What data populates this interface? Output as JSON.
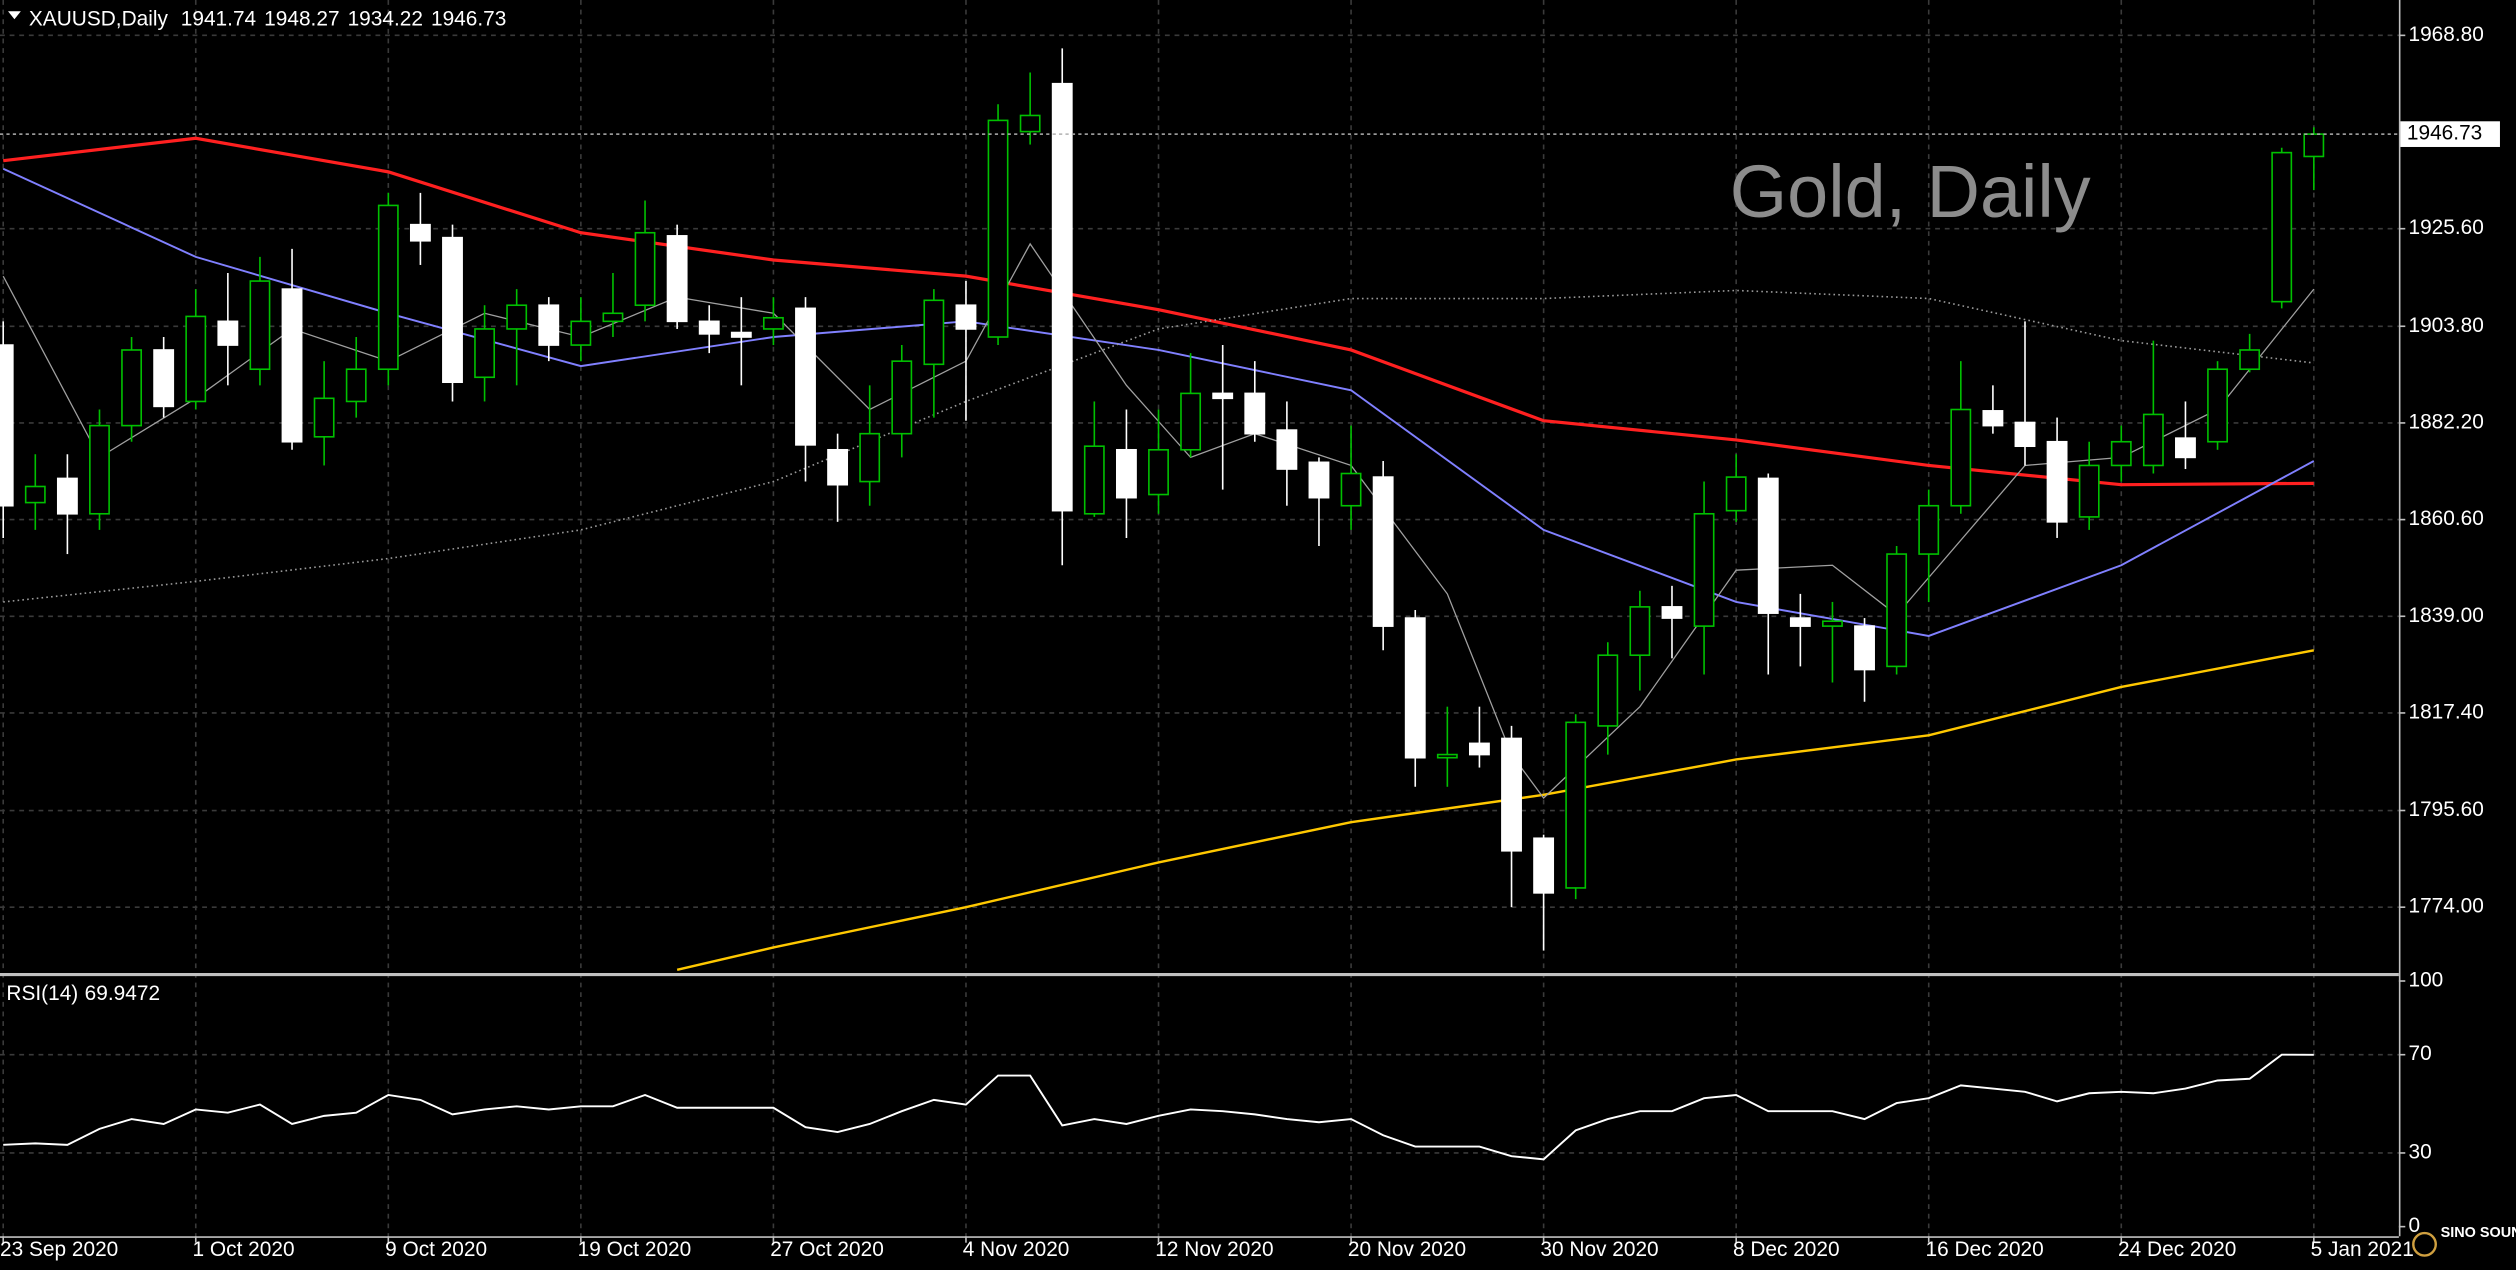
{
  "chart_data": [
    {
      "type": "candlestick",
      "title": "XAUUSD,Daily",
      "watermark": "Gold, Daily",
      "categories": [
        "23 Sep 2020",
        null,
        null,
        null,
        null,
        null,
        "1 Oct 2020",
        null,
        null,
        null,
        null,
        null,
        "9 Oct 2020",
        null,
        null,
        null,
        null,
        null,
        "19 Oct 2020",
        null,
        null,
        null,
        null,
        null,
        "27 Oct 2020",
        null,
        null,
        null,
        null,
        null,
        "4 Nov 2020",
        null,
        null,
        null,
        null,
        null,
        "12 Nov 2020",
        null,
        null,
        null,
        null,
        null,
        "20 Nov 2020",
        null,
        null,
        null,
        null,
        null,
        "30 Nov 2020",
        null,
        null,
        null,
        null,
        null,
        "8 Dec 2020",
        null,
        null,
        null,
        null,
        null,
        "16 Dec 2020",
        null,
        null,
        null,
        null,
        null,
        "24 Dec 2020",
        null,
        null,
        null,
        null,
        null,
        "5 Jan 2021"
      ],
      "open": [
        1899.6,
        1864.4,
        1869.8,
        1861.9,
        1881.6,
        1898.5,
        1887.0,
        1904.9,
        1894.2,
        1912.1,
        1879.1,
        1887.0,
        1894.2,
        1926.5,
        1923.6,
        1892.4,
        1903.2,
        1908.5,
        1899.6,
        1904.9,
        1908.5,
        1924.0,
        1904.9,
        1902.4,
        1903.2,
        1907.8,
        1876.2,
        1869.1,
        1879.8,
        1895.3,
        1908.5,
        1901.4,
        1947.3,
        1958.0,
        1861.9,
        1876.2,
        1866.2,
        1876.2,
        1888.8,
        1888.8,
        1880.6,
        1873.4,
        1863.7,
        1870.1,
        1838.6,
        1807.4,
        1810.6,
        1811.7,
        1789.4,
        1778.3,
        1814.5,
        1830.3,
        1841.1,
        1836.8,
        1862.6,
        1869.8,
        1838.6,
        1836.8,
        1836.8,
        1827.8,
        1852.9,
        1863.7,
        1884.9,
        1882.3,
        1878.0,
        1861.2,
        1872.7,
        1872.7,
        1878.8,
        1878.0,
        1894.2,
        1909.3,
        1941.74
      ],
      "high": [
        1904.9,
        1875.2,
        1875.2,
        1885.2,
        1901.4,
        1901.4,
        1912.1,
        1915.7,
        1919.3,
        1921.1,
        1896.0,
        1901.4,
        1933.6,
        1933.6,
        1926.5,
        1908.5,
        1912.1,
        1910.3,
        1910.3,
        1915.7,
        1931.9,
        1926.5,
        1908.5,
        1910.3,
        1910.3,
        1910.3,
        1879.8,
        1890.6,
        1899.6,
        1912.1,
        1913.9,
        1953.4,
        1960.5,
        1965.9,
        1887.0,
        1885.2,
        1885.2,
        1897.8,
        1899.6,
        1896.0,
        1887.0,
        1874.5,
        1881.6,
        1873.7,
        1840.4,
        1818.8,
        1818.8,
        1814.5,
        1790.2,
        1817.1,
        1833.2,
        1844.7,
        1845.8,
        1869.1,
        1875.2,
        1870.9,
        1844.0,
        1842.2,
        1838.6,
        1854.7,
        1867.3,
        1896.0,
        1890.6,
        1904.9,
        1883.4,
        1878.0,
        1881.6,
        1900.6,
        1887.0,
        1896.0,
        1902.1,
        1943.7,
        1948.27
      ],
      "low": [
        1856.5,
        1858.3,
        1852.9,
        1858.3,
        1878.0,
        1883.4,
        1885.2,
        1890.6,
        1890.6,
        1876.2,
        1872.7,
        1883.4,
        1890.6,
        1917.5,
        1887.0,
        1887.0,
        1890.6,
        1896.0,
        1896.0,
        1901.4,
        1904.9,
        1903.2,
        1897.8,
        1890.6,
        1899.6,
        1869.1,
        1860.1,
        1863.7,
        1874.5,
        1883.4,
        1882.7,
        1899.6,
        1944.4,
        1850.4,
        1861.2,
        1856.5,
        1861.9,
        1874.5,
        1867.3,
        1878.0,
        1863.7,
        1854.7,
        1858.3,
        1831.4,
        1800.9,
        1800.9,
        1805.2,
        1774.0,
        1764.3,
        1775.8,
        1808.1,
        1822.4,
        1829.6,
        1826.0,
        1860.1,
        1826.0,
        1827.8,
        1824.2,
        1819.9,
        1826.0,
        1842.2,
        1861.9,
        1879.8,
        1872.7,
        1856.5,
        1858.3,
        1869.1,
        1870.9,
        1871.9,
        1876.2,
        1893.5,
        1907.8,
        1934.22
      ],
      "close": [
        1863.7,
        1868.0,
        1861.9,
        1881.6,
        1898.5,
        1885.9,
        1906.0,
        1899.6,
        1913.9,
        1878.0,
        1887.7,
        1894.2,
        1930.8,
        1922.9,
        1891.3,
        1903.2,
        1908.5,
        1899.6,
        1904.9,
        1906.7,
        1924.7,
        1904.9,
        1902.1,
        1901.4,
        1905.7,
        1877.3,
        1868.4,
        1879.8,
        1896.0,
        1909.6,
        1903.2,
        1949.8,
        1950.9,
        1862.6,
        1877.0,
        1865.5,
        1876.2,
        1888.8,
        1887.7,
        1879.8,
        1871.9,
        1865.5,
        1870.9,
        1836.8,
        1807.4,
        1808.1,
        1808.1,
        1786.6,
        1777.2,
        1815.3,
        1830.3,
        1841.1,
        1838.6,
        1861.9,
        1870.1,
        1839.7,
        1836.8,
        1837.9,
        1827.1,
        1852.9,
        1863.7,
        1885.2,
        1881.6,
        1877.0,
        1860.1,
        1872.7,
        1878.0,
        1884.1,
        1874.5,
        1894.2,
        1898.5,
        1942.6,
        1946.73
      ],
      "up_color": "#00c000",
      "down_color": "#ffffff",
      "grid": true,
      "ylim": [
        1759.3,
        1976.7
      ],
      "yticks": [
        {
          "value": 1968.8,
          "label": "1968.80"
        },
        {
          "value": 1925.6,
          "label": "1925.60"
        },
        {
          "value": 1903.8,
          "label": "1903.80"
        },
        {
          "value": 1882.2,
          "label": "1882.20"
        },
        {
          "value": 1860.6,
          "label": "1860.60"
        },
        1839,
        {
          "value": 1839,
          "label": "1839.00"
        },
        {
          "value": 1817.4,
          "label": "1817.40"
        },
        {
          "value": 1795.6,
          "label": "1795.60"
        },
        {
          "value": 1774,
          "label": "1774.00"
        }
      ],
      "overlays": [
        {
          "color": "#ff2020",
          "x": [
            0,
            6,
            12,
            18,
            24,
            30,
            36,
            42,
            48,
            54,
            60,
            66,
            72
          ],
          "values": [
            1940.8,
            1945.8,
            1938.3,
            1924.7,
            1918.6,
            1915.0,
            1907.5,
            1898.5,
            1882.7,
            1878.4,
            1872.7,
            1868.4,
            1868.7
          ]
        },
        {
          "color": "#8080ff",
          "x": [
            0,
            6,
            12,
            18,
            24,
            30,
            36,
            42,
            48,
            54,
            60,
            66,
            72
          ],
          "values": [
            1939.0,
            1919.3,
            1906.7,
            1894.9,
            1901.4,
            1904.9,
            1898.5,
            1889.5,
            1858.3,
            1842.2,
            1834.6,
            1850.4,
            1873.7
          ]
        },
        {
          "color": "#9a9a9a",
          "style": "dotted",
          "x": [
            0,
            6,
            12,
            18,
            24,
            30,
            36,
            42,
            48,
            54,
            60,
            66,
            72
          ],
          "values": [
            1842.2,
            1846.8,
            1851.9,
            1858.3,
            1869.1,
            1887.0,
            1903.2,
            1910.0,
            1910.0,
            1911.8,
            1910.0,
            1900.6,
            1895.6
          ]
        },
        {
          "color": "#ffc800",
          "x": [
            21,
            24,
            30,
            36,
            42,
            48,
            54,
            60,
            66,
            72
          ],
          "values": [
            1760.0,
            1765.0,
            1774.0,
            1784.0,
            1793.0,
            1799.1,
            1807.0,
            1812.4,
            1823.2,
            1831.4
          ]
        },
        {
          "color": "#a0a0a0",
          "x": [
            0,
            3,
            6,
            9,
            12,
            15,
            18,
            21,
            24,
            27,
            30,
            32,
            35,
            37,
            39,
            42,
            45,
            47,
            48,
            51,
            54,
            57,
            59,
            63,
            66,
            69,
            72
          ],
          "values": [
            1915.0,
            1874.5,
            1887.7,
            1903.2,
            1896.0,
            1906.7,
            1901.4,
            1910.3,
            1906.7,
            1885.2,
            1896.0,
            1922.2,
            1890.6,
            1874.5,
            1879.8,
            1872.7,
            1844.0,
            1808.1,
            1798.4,
            1818.8,
            1849.3,
            1850.4,
            1839.3,
            1872.7,
            1874.5,
            1885.2,
            1912.1
          ]
        }
      ]
    },
    {
      "type": "line",
      "title": "RSI(14)",
      "ylim": [
        0,
        100
      ],
      "yticks": [
        100,
        70,
        30,
        0
      ],
      "series": [
        {
          "color": "#ffffff",
          "values": [
            33.3,
            33.9,
            33.3,
            39.8,
            43.8,
            41.8,
            47.7,
            46.4,
            49.7,
            41.8,
            45.1,
            46.4,
            53.6,
            51.6,
            45.7,
            47.7,
            49.0,
            47.7,
            49.0,
            49.0,
            53.6,
            48.4,
            48.4,
            48.4,
            48.4,
            40.5,
            38.5,
            41.8,
            47.0,
            51.6,
            49.7,
            61.5,
            61.5,
            41.2,
            43.8,
            41.8,
            45.1,
            47.7,
            47.0,
            45.7,
            43.8,
            42.5,
            43.8,
            37.2,
            32.6,
            32.6,
            32.6,
            28.7,
            27.4,
            39.2,
            43.8,
            47.0,
            47.0,
            52.3,
            53.6,
            47.0,
            47.0,
            47.0,
            43.8,
            50.3,
            52.3,
            57.5,
            56.2,
            54.9,
            51.0,
            54.3,
            54.9,
            54.3,
            56.2,
            59.5,
            60.2,
            70.0,
            69.9472
          ]
        }
      ]
    },
    {
      "type": "logo",
      "text": "SINO SOUND"
    }
  ]
}
